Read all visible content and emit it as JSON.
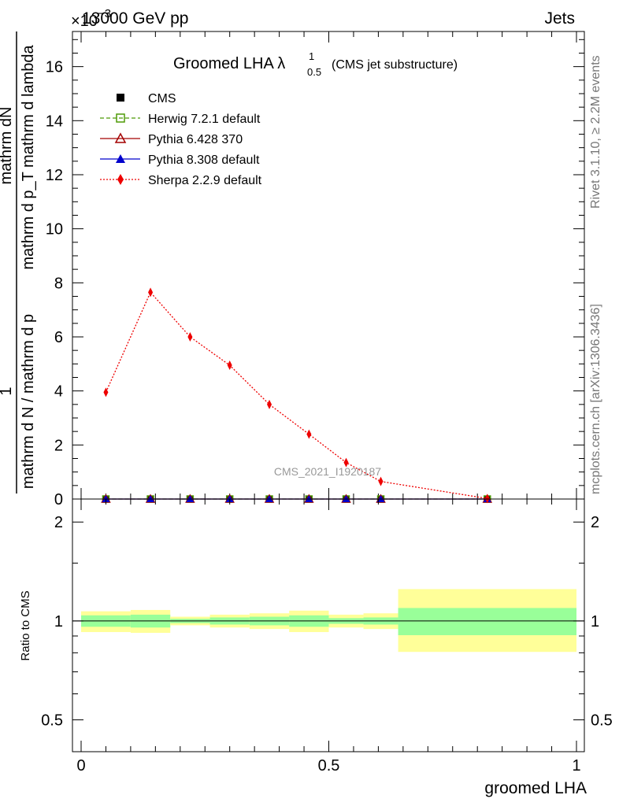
{
  "header": {
    "left": "13000 GeV pp",
    "right": "Jets"
  },
  "side_labels": {
    "rivet": "Rivet 3.1.10, ≥ 2.2M events",
    "mcplots": "mcplots.cern.ch [arXiv:1306.3436]"
  },
  "watermark": "CMS_2021_I1920187",
  "chart_data": [
    {
      "type": "line",
      "title": "Groomed LHA λ",
      "title_sup": "1",
      "title_sub": "0.5",
      "title_suffix": "(CMS jet substructure)",
      "y_multiplier": "×10",
      "y_multiplier_exp": "−3",
      "ylabel_num": "mathrm dN",
      "ylabel_den": "mathrm d p_T mathrm d lambda",
      "ylabel_den2_a": "mathrm d N / mathrm d p",
      "ylabel_den2_b": " mathrm d N",
      "ylabel_one": "1",
      "ylim": [
        0,
        17.3
      ],
      "xlim": [
        -0.02,
        1.02
      ],
      "yticks": [
        0,
        2,
        4,
        6,
        8,
        10,
        12,
        14,
        16
      ],
      "ytick_labels": [
        "0",
        "2",
        "4",
        "6",
        "8",
        "10",
        "12",
        "14",
        "16"
      ],
      "legend_position": "top-left",
      "series": [
        {
          "name": "CMS",
          "color": "#000000",
          "marker": "square-filled",
          "line": "none",
          "x": [
            0.05,
            0.14,
            0.22,
            0.3,
            0.38,
            0.46,
            0.535,
            0.605,
            0.82
          ],
          "y": [
            0,
            0,
            0,
            0,
            0,
            0,
            0,
            0,
            0
          ]
        },
        {
          "name": "Herwig 7.2.1 default",
          "color": "#4e9a06",
          "marker": "square-open",
          "line": "dashed",
          "x": [
            0.05,
            0.14,
            0.22,
            0.3,
            0.38,
            0.46,
            0.535,
            0.605,
            0.82
          ],
          "y": [
            0,
            0,
            0,
            0,
            0,
            0,
            0,
            0,
            0
          ]
        },
        {
          "name": "Pythia 6.428 370",
          "color": "#a40000",
          "marker": "triangle-open",
          "line": "solid",
          "x": [
            0.05,
            0.14,
            0.22,
            0.3,
            0.38,
            0.46,
            0.535,
            0.605,
            0.82
          ],
          "y": [
            0,
            0,
            0,
            0,
            0,
            0,
            0,
            0,
            0
          ]
        },
        {
          "name": "Pythia 8.308 default",
          "color": "#0000cc",
          "marker": "triangle-filled",
          "line": "solid",
          "x": [
            0.05,
            0.14,
            0.22,
            0.3,
            0.38,
            0.46,
            0.535,
            0.605,
            0.82
          ],
          "y": [
            0,
            0,
            0,
            0,
            0,
            0,
            0,
            0,
            0
          ]
        },
        {
          "name": "Sherpa 2.2.9 default",
          "color": "#ee0000",
          "marker": "diamond-filled",
          "line": "dotted",
          "x": [
            0.05,
            0.14,
            0.22,
            0.3,
            0.38,
            0.46,
            0.535,
            0.605,
            0.82
          ],
          "y": [
            3.95,
            7.65,
            6.0,
            4.95,
            3.5,
            2.4,
            1.35,
            0.65,
            0.02
          ]
        }
      ]
    },
    {
      "type": "area",
      "ylabel": "Ratio to CMS",
      "xlabel": "groomed LHA",
      "ylim": [
        0.4,
        2.35
      ],
      "log_y": true,
      "xlim": [
        -0.02,
        1.02
      ],
      "yticks": [
        0.5,
        1,
        2
      ],
      "ytick_labels": [
        "0.5",
        "1",
        "2"
      ],
      "xticks": [
        0,
        0.5,
        1
      ],
      "xtick_labels": [
        "0",
        "0.5",
        "1"
      ],
      "reference_line": 1,
      "colors": {
        "stat_band": "#99ff99",
        "total_band": "#ffff99"
      },
      "bins": [
        {
          "lo": 0.0,
          "hi": 0.1,
          "stat": [
            0.96,
            1.04
          ],
          "total": [
            0.925,
            1.07
          ]
        },
        {
          "lo": 0.1,
          "hi": 0.18,
          "stat": [
            0.955,
            1.045
          ],
          "total": [
            0.92,
            1.08
          ]
        },
        {
          "lo": 0.18,
          "hi": 0.26,
          "stat": [
            0.985,
            1.015
          ],
          "total": [
            0.97,
            1.03
          ]
        },
        {
          "lo": 0.26,
          "hi": 0.34,
          "stat": [
            0.975,
            1.025
          ],
          "total": [
            0.955,
            1.045
          ]
        },
        {
          "lo": 0.34,
          "hi": 0.42,
          "stat": [
            0.97,
            1.03
          ],
          "total": [
            0.945,
            1.055
          ]
        },
        {
          "lo": 0.42,
          "hi": 0.5,
          "stat": [
            0.96,
            1.04
          ],
          "total": [
            0.925,
            1.075
          ]
        },
        {
          "lo": 0.5,
          "hi": 0.57,
          "stat": [
            0.98,
            1.02
          ],
          "total": [
            0.955,
            1.045
          ]
        },
        {
          "lo": 0.57,
          "hi": 0.64,
          "stat": [
            0.975,
            1.025
          ],
          "total": [
            0.945,
            1.055
          ]
        },
        {
          "lo": 0.64,
          "hi": 1.0,
          "stat": [
            0.905,
            1.095
          ],
          "total": [
            0.805,
            1.25
          ]
        }
      ]
    }
  ]
}
